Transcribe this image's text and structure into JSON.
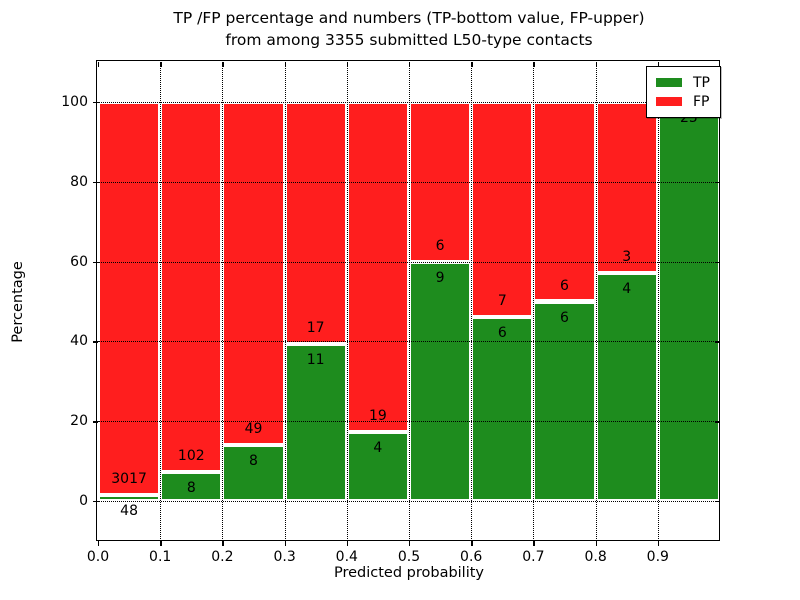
{
  "title": {
    "line1": "TP /FP percentage and numbers (TP-bottom value, FP-upper)",
    "line2": "from among 3355 submitted L50-type contacts"
  },
  "axes": {
    "xlabel": "Predicted probability",
    "ylabel": "Percentage",
    "x_tick_labels": [
      "0.0",
      "0.1",
      "0.2",
      "0.3",
      "0.4",
      "0.5",
      "0.6",
      "0.7",
      "0.8",
      "0.9"
    ],
    "x_tick_values": [
      0,
      0.1,
      0.2,
      0.3,
      0.4,
      0.5,
      0.6,
      0.7,
      0.8,
      0.9
    ],
    "y_tick_labels": [
      "0",
      "20",
      "40",
      "60",
      "80",
      "100"
    ],
    "y_tick_values": [
      0,
      20,
      40,
      60,
      80,
      100
    ],
    "xlim": [
      0,
      1
    ],
    "ylim": [
      -10,
      110
    ],
    "grid_style": "dotted"
  },
  "legend": {
    "position": "upper-right",
    "entries": [
      {
        "label": "TP",
        "color": "#1e8c1e"
      },
      {
        "label": "FP",
        "color": "#ff1e1e"
      }
    ]
  },
  "chart_data": {
    "type": "bar",
    "stacked": true,
    "normalized": "each bin stacked to 100%",
    "title": "TP /FP percentage and numbers (TP-bottom value, FP-upper) from among 3355 submitted L50-type contacts",
    "xlabel": "Predicted probability",
    "ylabel": "Percentage",
    "xlim": [
      0,
      1
    ],
    "ylim": [
      -10,
      110
    ],
    "total_contacts": 3355,
    "colors": {
      "tp": "#1e8c1e",
      "fp": "#ff1e1e",
      "bar_edge": "#ffffff"
    },
    "bins": [
      {
        "range": [
          0.0,
          0.1
        ],
        "tp": 48,
        "fp": 3017
      },
      {
        "range": [
          0.1,
          0.2
        ],
        "tp": 8,
        "fp": 102
      },
      {
        "range": [
          0.2,
          0.3
        ],
        "tp": 8,
        "fp": 49
      },
      {
        "range": [
          0.3,
          0.4
        ],
        "tp": 11,
        "fp": 17
      },
      {
        "range": [
          0.4,
          0.5
        ],
        "tp": 4,
        "fp": 19
      },
      {
        "range": [
          0.5,
          0.6
        ],
        "tp": 9,
        "fp": 6
      },
      {
        "range": [
          0.6,
          0.7
        ],
        "tp": 6,
        "fp": 7
      },
      {
        "range": [
          0.7,
          0.8
        ],
        "tp": 6,
        "fp": 6
      },
      {
        "range": [
          0.8,
          0.9
        ],
        "tp": 4,
        "fp": 3
      },
      {
        "range": [
          0.9,
          1.0
        ],
        "tp": 25,
        "fp": 0
      }
    ],
    "series": [
      {
        "name": "TP",
        "color": "#1e8c1e",
        "counts": [
          48,
          8,
          8,
          11,
          4,
          9,
          6,
          6,
          4,
          25
        ]
      },
      {
        "name": "FP",
        "color": "#ff1e1e",
        "counts": [
          3017,
          102,
          49,
          17,
          19,
          6,
          7,
          6,
          3,
          0
        ]
      }
    ]
  }
}
